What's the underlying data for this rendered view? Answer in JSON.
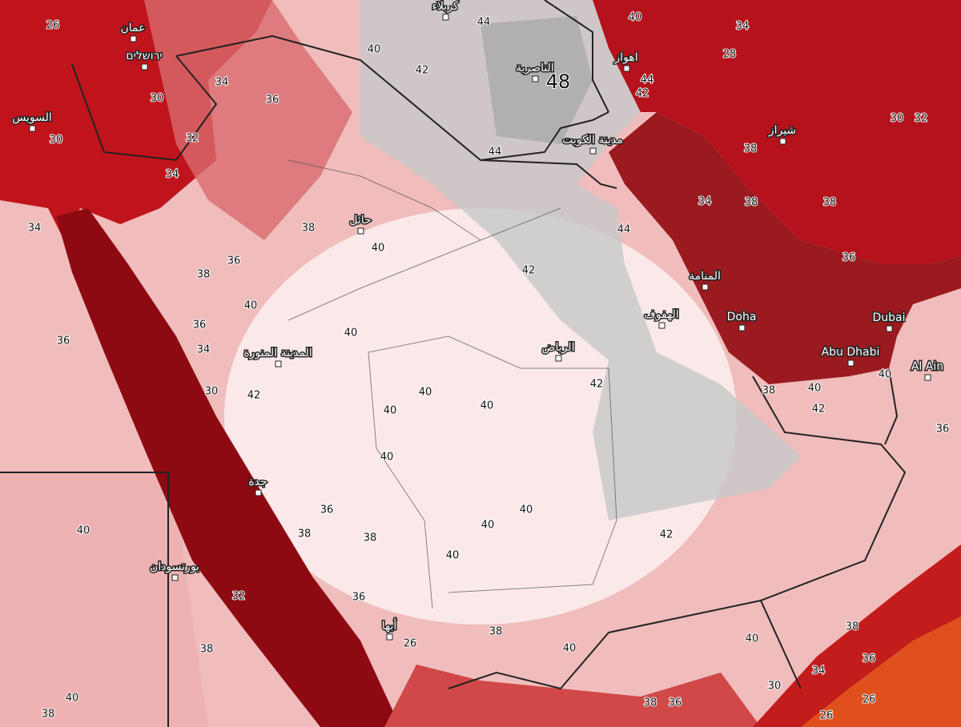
{
  "cities": [
    {
      "label": "عمان"
    },
    {
      "label": "ירושלים"
    },
    {
      "label": "السويس"
    },
    {
      "label": "كربلاء"
    },
    {
      "label": "الناصرية"
    },
    {
      "label": "اهواز"
    },
    {
      "label": "مدينة الكويت"
    },
    {
      "label": "شيراز"
    },
    {
      "label": "حائل"
    },
    {
      "label": "المنامة"
    },
    {
      "label": "الهفوف"
    },
    {
      "label": "Doha"
    },
    {
      "label": "Dubai"
    },
    {
      "label": "Abu Dhabi"
    },
    {
      "label": "Al Ain"
    },
    {
      "label": "الرياض"
    },
    {
      "label": "المدينة المنورة"
    },
    {
      "label": "جدة"
    },
    {
      "label": "بورتسودان"
    },
    {
      "label": "أبها"
    }
  ],
  "contour_labels": [
    40,
    42,
    44,
    44,
    48,
    40,
    44,
    42,
    36,
    34,
    30,
    32,
    34,
    38,
    40,
    36,
    38,
    40,
    40,
    36,
    34,
    42,
    44,
    34,
    38,
    36,
    38,
    38,
    28,
    34,
    30,
    32,
    42,
    40,
    40,
    40,
    42,
    40,
    40,
    40,
    42,
    40,
    38,
    38,
    36,
    36,
    38,
    40,
    40,
    38,
    34,
    36,
    30,
    26,
    26,
    42,
    40,
    38,
    40,
    36,
    40,
    40,
    38,
    38,
    36,
    30,
    26,
    34,
    30,
    32,
    38,
    36,
    26
  ]
}
